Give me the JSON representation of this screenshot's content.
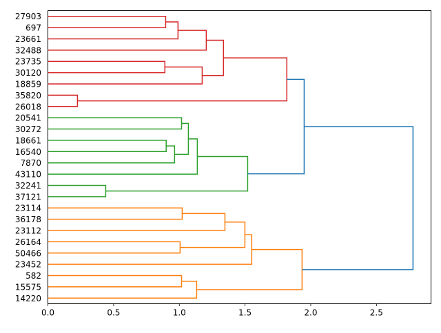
{
  "chart_data": {
    "type": "dendrogram",
    "orientation": "left",
    "title": "",
    "xlabel": "",
    "ylabel": "",
    "xlim": [
      0,
      2.915
    ],
    "xticks": [
      0.0,
      0.5,
      1.0,
      1.5,
      2.0,
      2.5
    ],
    "xtick_labels": [
      "0.0",
      "0.5",
      "1.0",
      "1.5",
      "2.0",
      "2.5"
    ],
    "leaves": [
      "27903",
      "697",
      "23661",
      "32488",
      "23735",
      "30120",
      "18859",
      "35820",
      "26018",
      "20541",
      "30272",
      "18661",
      "16540",
      "7870",
      "43110",
      "32241",
      "37121",
      "23114",
      "36178",
      "23112",
      "26164",
      "50466",
      "23452",
      "582",
      "15575",
      "14220"
    ],
    "colors": {
      "red": "#d62728",
      "green": "#2ca02c",
      "orange": "#ff7f0e",
      "blue": "#1f77b4"
    },
    "merges": [
      {
        "a": 0,
        "b": 1,
        "height": 0.896,
        "color": "red"
      },
      {
        "a": 26,
        "b": 2,
        "height": 0.99,
        "color": "red"
      },
      {
        "a": 27,
        "b": 3,
        "height": 1.205,
        "color": "red"
      },
      {
        "a": 4,
        "b": 5,
        "height": 0.89,
        "color": "red"
      },
      {
        "a": 29,
        "b": 6,
        "height": 1.174,
        "color": "red"
      },
      {
        "a": 28,
        "b": 30,
        "height": 1.336,
        "color": "red"
      },
      {
        "a": 7,
        "b": 8,
        "height": 0.225,
        "color": "red"
      },
      {
        "a": 31,
        "b": 32,
        "height": 1.818,
        "color": "red"
      },
      {
        "a": 9,
        "b": 10,
        "height": 1.017,
        "color": "green"
      },
      {
        "a": 11,
        "b": 12,
        "height": 0.9,
        "color": "green"
      },
      {
        "a": 35,
        "b": 13,
        "height": 0.964,
        "color": "green"
      },
      {
        "a": 34,
        "b": 36,
        "height": 1.069,
        "color": "green"
      },
      {
        "a": 37,
        "b": 14,
        "height": 1.137,
        "color": "green"
      },
      {
        "a": 15,
        "b": 16,
        "height": 0.44,
        "color": "green"
      },
      {
        "a": 38,
        "b": 39,
        "height": 1.52,
        "color": "green"
      },
      {
        "a": 33,
        "b": 40,
        "height": 1.95,
        "color": "blue"
      },
      {
        "a": 17,
        "b": 18,
        "height": 1.022,
        "color": "orange"
      },
      {
        "a": 42,
        "b": 19,
        "height": 1.347,
        "color": "orange"
      },
      {
        "a": 20,
        "b": 21,
        "height": 1.006,
        "color": "orange"
      },
      {
        "a": 43,
        "b": 44,
        "height": 1.499,
        "color": "orange"
      },
      {
        "a": 45,
        "b": 22,
        "height": 1.551,
        "color": "orange"
      },
      {
        "a": 23,
        "b": 24,
        "height": 1.017,
        "color": "orange"
      },
      {
        "a": 47,
        "b": 25,
        "height": 1.132,
        "color": "orange"
      },
      {
        "a": 46,
        "b": 48,
        "height": 1.934,
        "color": "orange"
      },
      {
        "a": 41,
        "b": 49,
        "height": 2.778,
        "color": "blue"
      }
    ]
  }
}
